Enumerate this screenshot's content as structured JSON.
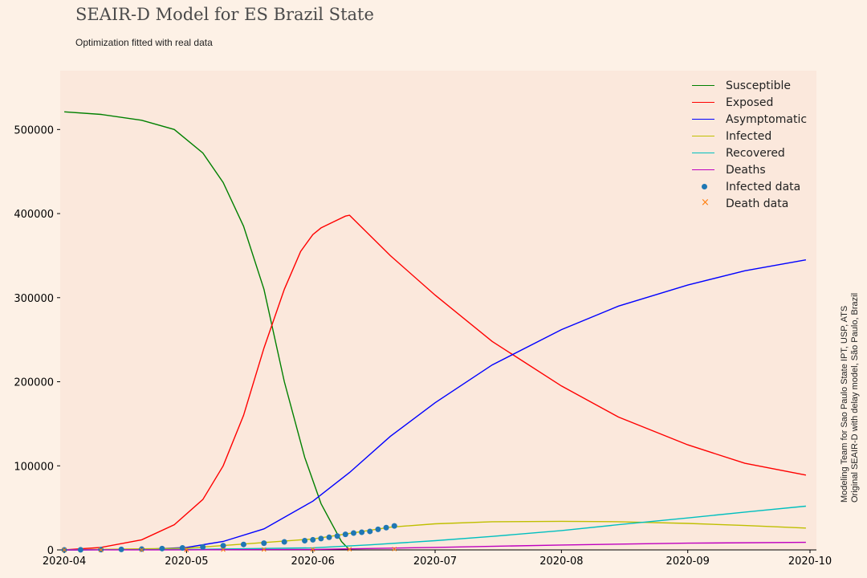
{
  "title": "SEAIR-D Model for ES Brazil State",
  "subtitle": "Optimization fitted with real data",
  "side_note": [
    "Modeling Team for Sao Paulo State IPT, USP, ATS",
    "Original SEAIR-D with delay model, São Paulo, Brazil"
  ],
  "chart_data": {
    "type": "line",
    "title": "SEAIR-D Model for ES Brazil State",
    "subtitle": "Optimization fitted with real data",
    "xlabel": "",
    "ylabel": "",
    "x_range": [
      "2020-03-31",
      "2020-10-01"
    ],
    "ylim": [
      0,
      570000
    ],
    "x_ticks": [
      "2020-04",
      "2020-05",
      "2020-06",
      "2020-07",
      "2020-08",
      "2020-09",
      "2020-10"
    ],
    "x_tick_dates": [
      "2020-04-01",
      "2020-05-01",
      "2020-06-01",
      "2020-07-01",
      "2020-08-01",
      "2020-09-01",
      "2020-10-01"
    ],
    "y_ticks": [
      0,
      100000,
      200000,
      300000,
      400000,
      500000
    ],
    "grid": false,
    "legend_position": "top-right",
    "series": [
      {
        "name": "Susceptible",
        "color": "#008000",
        "x": [
          "2020-04-01",
          "2020-04-10",
          "2020-04-20",
          "2020-04-28",
          "2020-05-05",
          "2020-05-10",
          "2020-05-15",
          "2020-05-20",
          "2020-05-25",
          "2020-05-30",
          "2020-06-03",
          "2020-06-06",
          "2020-06-08",
          "2020-06-10"
        ],
        "y": [
          521000,
          518000,
          511000,
          500000,
          472000,
          437000,
          385000,
          310000,
          200000,
          110000,
          55000,
          28000,
          10000,
          0
        ]
      },
      {
        "name": "Exposed",
        "color": "#ff0000",
        "x": [
          "2020-04-01",
          "2020-04-10",
          "2020-04-20",
          "2020-04-28",
          "2020-05-05",
          "2020-05-10",
          "2020-05-15",
          "2020-05-20",
          "2020-05-25",
          "2020-05-29",
          "2020-06-01",
          "2020-06-03",
          "2020-06-06",
          "2020-06-09",
          "2020-06-10",
          "2020-06-20",
          "2020-07-01",
          "2020-07-15",
          "2020-08-01",
          "2020-08-15",
          "2020-09-01",
          "2020-09-15",
          "2020-09-30"
        ],
        "y": [
          0,
          3000,
          12000,
          30000,
          60000,
          100000,
          160000,
          240000,
          310000,
          355000,
          375000,
          383000,
          390000,
          397000,
          398000,
          350000,
          303000,
          248000,
          195000,
          158000,
          125000,
          103000,
          89000
        ]
      },
      {
        "name": "Asymptomatic",
        "color": "#0000ff",
        "x": [
          "2020-04-01",
          "2020-04-20",
          "2020-05-01",
          "2020-05-10",
          "2020-05-20",
          "2020-06-01",
          "2020-06-10",
          "2020-06-20",
          "2020-07-01",
          "2020-07-15",
          "2020-08-01",
          "2020-08-15",
          "2020-09-01",
          "2020-09-15",
          "2020-09-30"
        ],
        "y": [
          0,
          500,
          3000,
          10000,
          25000,
          58000,
          92000,
          135000,
          175000,
          220000,
          262000,
          290000,
          315000,
          332000,
          345000
        ]
      },
      {
        "name": "Infected",
        "color": "#bfbf00",
        "x": [
          "2020-04-01",
          "2020-05-01",
          "2020-06-01",
          "2020-06-20",
          "2020-07-01",
          "2020-07-15",
          "2020-08-01",
          "2020-08-15",
          "2020-09-01",
          "2020-09-15",
          "2020-09-30"
        ],
        "y": [
          0,
          2000,
          13000,
          27000,
          31000,
          33500,
          34000,
          33500,
          31500,
          29000,
          26000
        ]
      },
      {
        "name": "Recovered",
        "color": "#00bfbf",
        "x": [
          "2020-04-01",
          "2020-05-01",
          "2020-06-01",
          "2020-06-15",
          "2020-07-01",
          "2020-07-15",
          "2020-08-01",
          "2020-08-15",
          "2020-09-01",
          "2020-09-15",
          "2020-09-30"
        ],
        "y": [
          0,
          500,
          2500,
          6000,
          11000,
          16000,
          23000,
          30000,
          38000,
          45000,
          52000
        ]
      },
      {
        "name": "Deaths",
        "color": "#bf00bf",
        "x": [
          "2020-04-01",
          "2020-05-01",
          "2020-06-01",
          "2020-07-01",
          "2020-08-01",
          "2020-09-01",
          "2020-09-30"
        ],
        "y": [
          0,
          100,
          600,
          3000,
          5800,
          8000,
          9000
        ]
      }
    ],
    "scatter_series": [
      {
        "name": "Infected data",
        "color": "#1f77b4",
        "marker": "circle",
        "x": [
          "2020-04-01",
          "2020-04-05",
          "2020-04-10",
          "2020-04-15",
          "2020-04-20",
          "2020-04-25",
          "2020-04-30",
          "2020-05-05",
          "2020-05-10",
          "2020-05-15",
          "2020-05-20",
          "2020-05-25",
          "2020-05-30",
          "2020-06-01",
          "2020-06-03",
          "2020-06-05",
          "2020-06-07",
          "2020-06-09",
          "2020-06-11",
          "2020-06-13",
          "2020-06-15",
          "2020-06-17",
          "2020-06-19",
          "2020-06-21"
        ],
        "y": [
          0,
          100,
          300,
          600,
          1000,
          1600,
          2400,
          3500,
          5000,
          6500,
          8000,
          9500,
          11000,
          12000,
          13500,
          15000,
          16500,
          18500,
          20000,
          21000,
          22000,
          24500,
          26500,
          28500
        ]
      },
      {
        "name": "Death data",
        "color": "#ff7f0e",
        "marker": "x",
        "x": [
          "2020-04-01",
          "2020-04-10",
          "2020-04-20",
          "2020-05-01",
          "2020-05-10",
          "2020-05-20",
          "2020-06-01",
          "2020-06-10",
          "2020-06-21"
        ],
        "y": [
          0,
          20,
          60,
          150,
          300,
          450,
          600,
          800,
          1000
        ]
      }
    ]
  }
}
